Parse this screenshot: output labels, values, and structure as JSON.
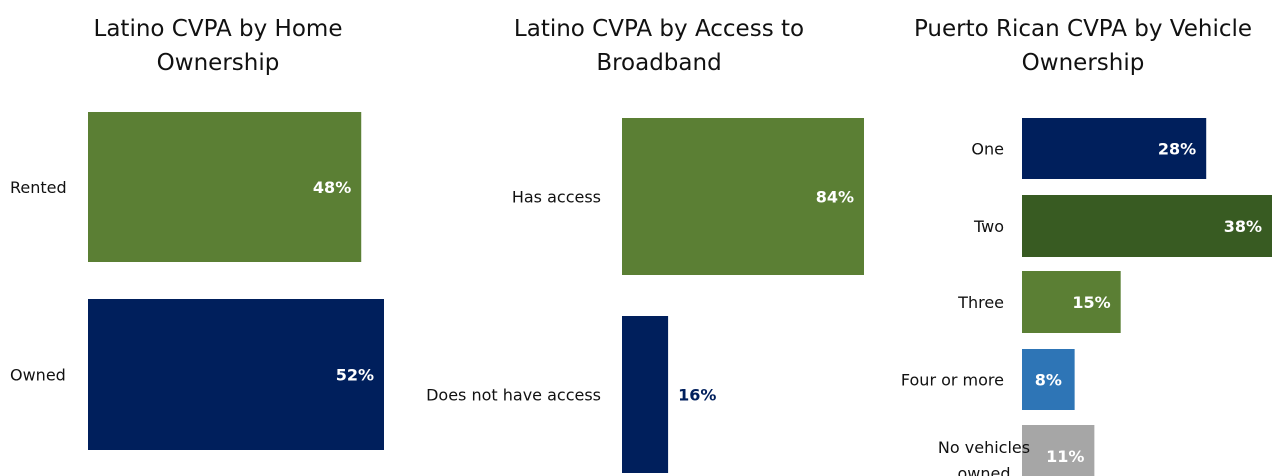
{
  "chart_data": [
    {
      "type": "bar",
      "orientation": "horizontal",
      "title": "Latino CVPA by Home Ownership",
      "categories": [
        "Rented",
        "Owned"
      ],
      "values": [
        48,
        52
      ],
      "value_labels": [
        "48%",
        "52%"
      ],
      "colors": [
        "#5b7f34",
        "#001f5c"
      ],
      "label_colors": [
        "#ffffff",
        "#ffffff"
      ],
      "xlim": [
        0,
        52
      ]
    },
    {
      "type": "bar",
      "orientation": "horizontal",
      "title": "Latino CVPA by Access to Broadband",
      "categories": [
        "Has access",
        "Does not have access"
      ],
      "values": [
        84,
        16
      ],
      "value_labels": [
        "84%",
        "16%"
      ],
      "colors": [
        "#5b7f34",
        "#001f5c"
      ],
      "label_colors": [
        "#ffffff",
        "#001f5c"
      ],
      "xlim": [
        0,
        84
      ]
    },
    {
      "type": "bar",
      "orientation": "horizontal",
      "title": "Puerto Rican CVPA by Vehicle Ownership",
      "categories": [
        "One",
        "Two",
        "Three",
        "Four or more",
        "No vehicles owned"
      ],
      "values": [
        28,
        38,
        15,
        8,
        11
      ],
      "value_labels": [
        "28%",
        "38%",
        "15%",
        "8%",
        "11%"
      ],
      "colors": [
        "#001f5c",
        "#385b22",
        "#5b7f34",
        "#2e75b6",
        "#a6a6a6"
      ],
      "label_colors": [
        "#ffffff",
        "#ffffff",
        "#ffffff",
        "#ffffff",
        "#ffffff"
      ],
      "xlim": [
        0,
        38
      ]
    }
  ]
}
